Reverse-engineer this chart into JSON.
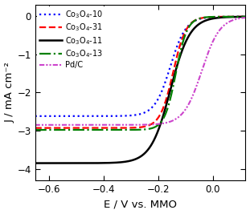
{
  "title": "",
  "xlabel": "E / V vs. MMO",
  "ylabel": "J / mA cm⁻²",
  "xlim": [
    -0.65,
    0.12
  ],
  "ylim": [
    -4.3,
    0.3
  ],
  "xticks": [
    -0.6,
    -0.4,
    -0.2,
    0.0
  ],
  "yticks": [
    0,
    -1,
    -2,
    -3,
    -4
  ],
  "series": [
    {
      "label": "Co$_3$O$_4$-10",
      "color": "#0000ff",
      "linestyle": "dotted",
      "linewidth": 1.6,
      "plateau": -2.62,
      "onset": -0.155,
      "steepness": 35,
      "final": -0.02
    },
    {
      "label": "Co$_3$O$_4$-31",
      "color": "#ff0000",
      "linestyle": "dashed",
      "linewidth": 1.6,
      "plateau": -2.93,
      "onset": -0.145,
      "steepness": 42,
      "final": -0.02
    },
    {
      "label": "Co$_3$O$_4$-11",
      "color": "#000000",
      "linestyle": "solid",
      "linewidth": 1.8,
      "plateau": -3.85,
      "onset": -0.155,
      "steepness": 28,
      "final": -0.02
    },
    {
      "label": "Co$_3$O$_4$-13",
      "color": "#008000",
      "linestyle": "dashdot",
      "linewidth": 1.6,
      "plateau": -2.98,
      "onset": -0.135,
      "steepness": 48,
      "final": -0.02
    },
    {
      "label": "Pd/C",
      "color": "#cc44cc",
      "linestyle": "dashdotdotted",
      "linewidth": 1.5,
      "plateau": -2.85,
      "onset": -0.04,
      "steepness": 30,
      "final": -0.02
    }
  ],
  "legend_loc": "upper left",
  "legend_fontsize": 7.0,
  "background_color": "white",
  "tick_fontsize": 8.5,
  "label_fontsize": 9.5
}
